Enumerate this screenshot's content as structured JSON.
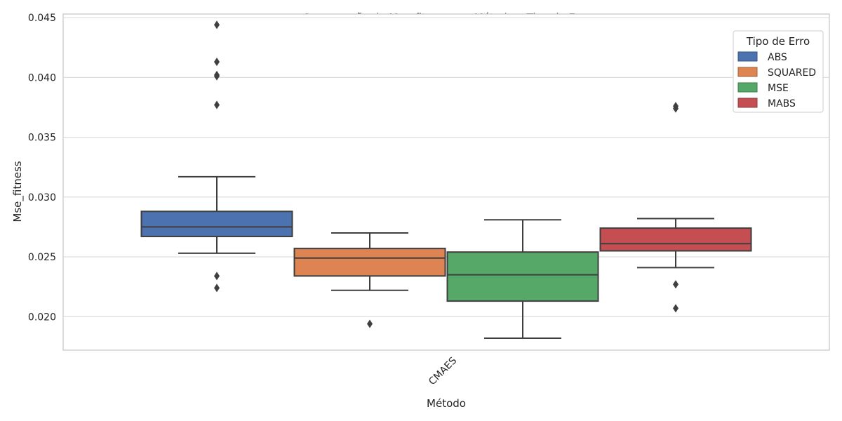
{
  "chart_data": {
    "type": "box",
    "title": "Comparação de Mse_fitness por Método e Tipo de Erro",
    "xlabel": "Método",
    "ylabel": "Mse_fitness",
    "categories": [
      "CMAES"
    ],
    "ylim": [
      0.0172,
      0.0453
    ],
    "yticks": [
      0.02,
      0.025,
      0.03,
      0.035,
      0.04,
      0.045
    ],
    "ytick_labels": [
      "0.020",
      "0.025",
      "0.030",
      "0.035",
      "0.040",
      "0.045"
    ],
    "grid": true,
    "legend": {
      "title": "Tipo de Erro",
      "position": "top-right"
    },
    "series": [
      {
        "name": "ABS",
        "color": "#4c72b0",
        "q1": 0.0267,
        "median": 0.0275,
        "q3": 0.0288,
        "whisker_low": 0.0253,
        "whisker_high": 0.0317,
        "outliers": [
          0.0444,
          0.0413,
          0.0402,
          0.0401,
          0.0377,
          0.0234,
          0.0224
        ]
      },
      {
        "name": "SQUARED",
        "color": "#dd8452",
        "q1": 0.0234,
        "median": 0.0249,
        "q3": 0.0257,
        "whisker_low": 0.0222,
        "whisker_high": 0.027,
        "outliers": [
          0.0194
        ]
      },
      {
        "name": "MSE",
        "color": "#55a868",
        "q1": 0.0213,
        "median": 0.0235,
        "q3": 0.0254,
        "whisker_low": 0.0182,
        "whisker_high": 0.0281,
        "outliers": []
      },
      {
        "name": "MABS",
        "color": "#c44e52",
        "q1": 0.0255,
        "median": 0.0261,
        "q3": 0.0274,
        "whisker_low": 0.0241,
        "whisker_high": 0.0282,
        "outliers": [
          0.0376,
          0.0374,
          0.0227,
          0.0207
        ]
      }
    ]
  }
}
